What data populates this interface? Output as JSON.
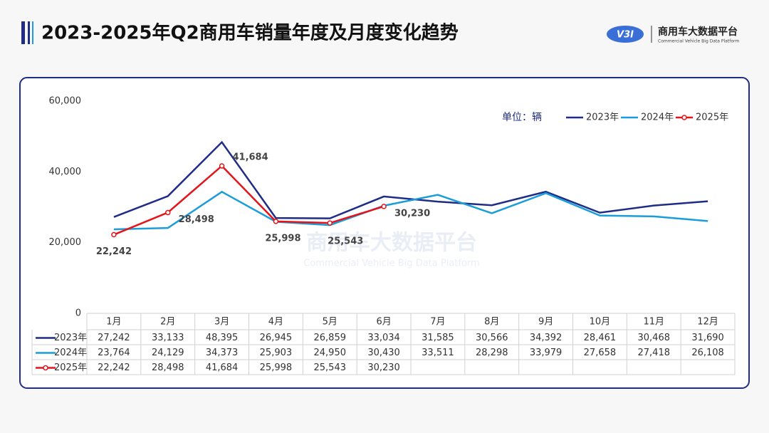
{
  "header": {
    "title": "2023-2025年Q2商用车销量年度及月度变化趋势"
  },
  "logo": {
    "badge": "V3I",
    "name": "商用车大数据平台",
    "subtitle": "Commercial Vehicle Big Data Platform"
  },
  "chart_data": {
    "type": "line",
    "unit": "单位：辆",
    "categories": [
      "1月",
      "2月",
      "3月",
      "4月",
      "5月",
      "6月",
      "7月",
      "8月",
      "9月",
      "10月",
      "11月",
      "12月"
    ],
    "ylim": [
      0,
      60000
    ],
    "yticks": [
      0,
      {
        "value": 20000,
        "label": "20,000"
      },
      {
        "value": 40000,
        "label": "40,000"
      },
      {
        "value": 60000,
        "label": "60,000"
      }
    ],
    "legend": "top-right",
    "series": [
      {
        "name": "2023年",
        "color": "#1f2d86",
        "values": [
          27242,
          33133,
          48395,
          26945,
          26859,
          33034,
          31585,
          30566,
          34392,
          28461,
          30468,
          31690
        ],
        "value_labels": [
          "27,242",
          "33,133",
          "48,395",
          "26,945",
          "26,859",
          "33,034",
          "31,585",
          "30,566",
          "34,392",
          "28,461",
          "30,468",
          "31,690"
        ]
      },
      {
        "name": "2024年",
        "color": "#1a9dd9",
        "values": [
          23764,
          24129,
          34373,
          25903,
          24950,
          30430,
          33511,
          28298,
          33979,
          27658,
          27418,
          26108
        ],
        "value_labels": [
          "23,764",
          "24,129",
          "34,373",
          "25,903",
          "24,950",
          "30,430",
          "33,511",
          "28,298",
          "33,979",
          "27,658",
          "27,418",
          "26,108"
        ]
      },
      {
        "name": "2025年",
        "color": "#e5141b",
        "markers": true,
        "data_labels": true,
        "values": [
          22242,
          28498,
          41684,
          25998,
          25543,
          30230,
          null,
          null,
          null,
          null,
          null,
          null
        ],
        "value_labels": [
          "22,242",
          "28,498",
          "41,684",
          "25,998",
          "25,543",
          "30,230",
          null,
          null,
          null,
          null,
          null,
          null
        ]
      }
    ]
  }
}
